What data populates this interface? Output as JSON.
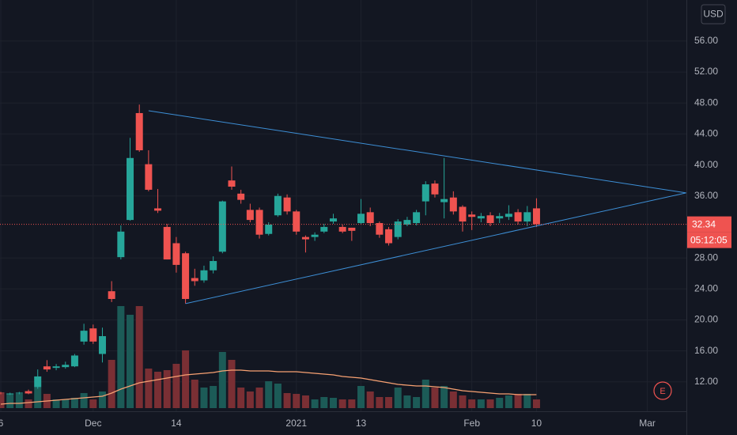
{
  "chart_data": {
    "type": "candlestick",
    "categories": [
      "6",
      null,
      null,
      null,
      null,
      null,
      null,
      null,
      null,
      null,
      "Dec",
      null,
      null,
      null,
      null,
      null,
      null,
      null,
      null,
      "14",
      null,
      null,
      null,
      null,
      null,
      null,
      null,
      null,
      null,
      null,
      null,
      null,
      "2021",
      null,
      null,
      null,
      null,
      null,
      null,
      "13",
      null,
      null,
      null,
      null,
      null,
      null,
      null,
      null,
      null,
      null,
      null,
      "Feb",
      null,
      null,
      null,
      null,
      null,
      null,
      "10",
      null,
      null,
      null,
      null,
      null,
      null,
      null,
      null,
      null,
      null,
      null,
      "Mar",
      null,
      null,
      null,
      null
    ],
    "open": [
      10.6,
      10.5,
      10.5,
      10.8,
      11.3,
      14.0,
      13.8,
      13.9,
      14.0,
      17.2,
      18.9,
      15.6,
      23.7,
      28.1,
      32.9,
      46.7,
      40.1,
      34.4,
      32.0,
      29.9,
      28.6,
      25.4,
      25.1,
      26.4,
      28.8,
      38.0,
      36.3,
      34.2,
      34.2,
      31.1,
      33.5,
      35.8,
      34.0,
      30.7,
      30.7,
      31.4,
      32.7,
      32.0,
      31.9,
      32.5,
      33.9,
      32.5,
      31.7,
      30.7,
      32.3,
      32.5,
      35.3,
      37.6,
      35.2,
      35.8,
      34.6,
      33.6,
      33.1,
      33.5,
      33.1,
      33.3,
      33.9,
      32.7,
      34.4,
      null,
      null,
      null,
      null,
      null,
      null,
      null,
      null,
      null,
      null,
      null,
      null,
      null,
      null,
      null,
      null
    ],
    "high": [
      10.7,
      10.6,
      10.7,
      11.0,
      13.6,
      14.8,
      14.3,
      14.6,
      15.6,
      19.5,
      19.4,
      19.0,
      25.0,
      32.2,
      43.5,
      47.8,
      41.9,
      36.9,
      32.4,
      30.7,
      28.8,
      26.6,
      27.0,
      28.2,
      35.4,
      39.8,
      36.8,
      35.0,
      34.5,
      32.6,
      36.3,
      36.2,
      34.2,
      30.9,
      31.3,
      32.4,
      33.7,
      32.3,
      31.9,
      35.6,
      34.5,
      32.7,
      32.0,
      33.0,
      33.3,
      34.2,
      37.9,
      38.0,
      40.9,
      36.6,
      34.8,
      34.0,
      33.8,
      33.9,
      33.8,
      34.8,
      34.3,
      34.7,
      35.7,
      null,
      null,
      null,
      null,
      null,
      null,
      null,
      null,
      null,
      null,
      null,
      null,
      null,
      null,
      null,
      null
    ],
    "low": [
      10.4,
      10.3,
      10.4,
      10.4,
      11.1,
      13.3,
      13.5,
      13.7,
      13.9,
      16.8,
      16.9,
      14.5,
      22.3,
      27.8,
      32.8,
      41.7,
      36.6,
      33.8,
      27.8,
      26.1,
      22.1,
      24.4,
      24.8,
      26.0,
      28.6,
      36.8,
      35.0,
      32.6,
      30.5,
      30.9,
      33.3,
      33.6,
      31.0,
      28.7,
      30.2,
      31.2,
      32.4,
      31.2,
      30.2,
      32.3,
      32.1,
      30.6,
      29.6,
      30.4,
      32.1,
      32.2,
      33.5,
      35.8,
      33.1,
      33.6,
      31.4,
      31.6,
      32.6,
      32.1,
      32.5,
      32.9,
      32.3,
      32.1,
      32.0,
      null,
      null,
      null,
      null,
      null,
      null,
      null,
      null,
      null,
      null,
      null,
      null,
      null,
      null,
      null,
      null
    ],
    "close": [
      10.5,
      10.5,
      10.6,
      10.5,
      12.7,
      13.6,
      14.0,
      14.2,
      15.4,
      18.6,
      17.2,
      17.9,
      22.7,
      31.4,
      40.9,
      41.9,
      36.8,
      34.1,
      27.8,
      27.1,
      22.7,
      25.0,
      26.4,
      27.6,
      35.3,
      37.2,
      35.5,
      32.9,
      31.0,
      32.3,
      36.0,
      34.0,
      31.4,
      30.4,
      31.0,
      32.0,
      33.1,
      31.4,
      31.5,
      33.7,
      32.5,
      31.0,
      29.9,
      32.7,
      32.9,
      33.9,
      37.5,
      36.2,
      35.6,
      34.0,
      32.7,
      33.3,
      33.4,
      32.5,
      33.4,
      33.7,
      32.7,
      33.9,
      32.34,
      null,
      null,
      null,
      null,
      null,
      null,
      null,
      null,
      null,
      null,
      null,
      null,
      null,
      null,
      null,
      null
    ],
    "colors": {
      "up": "#26a69a",
      "down": "#ef5350"
    },
    "volume": {
      "values": [
        1.8,
        1.8,
        1.8,
        1.1,
        2.6,
        1.8,
        1.1,
        1.1,
        1.3,
        1.9,
        1.1,
        2.1,
        6.1,
        12.9,
        11.8,
        12.9,
        5.0,
        4.6,
        4.8,
        5.6,
        7.3,
        3.6,
        2.6,
        2.8,
        7.1,
        6.1,
        2.6,
        2.1,
        2.6,
        3.4,
        3.1,
        1.9,
        1.8,
        1.6,
        1.1,
        1.4,
        1.3,
        1.1,
        1.1,
        2.8,
        2.1,
        1.4,
        1.4,
        2.6,
        1.6,
        1.4,
        3.6,
        2.6,
        2.8,
        2.1,
        1.6,
        1.1,
        1.1,
        1.1,
        1.3,
        1.6,
        1.8,
        1.8,
        1.1,
        null,
        null,
        null,
        null,
        null,
        null,
        null,
        null,
        null,
        null,
        null,
        null,
        null,
        null,
        null,
        null
      ],
      "ma": [
        0.5,
        0.6,
        0.6,
        0.7,
        0.8,
        0.9,
        1.0,
        1.1,
        1.2,
        1.3,
        1.4,
        1.5,
        1.9,
        2.4,
        2.8,
        3.2,
        3.4,
        3.6,
        3.8,
        4.0,
        4.2,
        4.3,
        4.4,
        4.5,
        4.7,
        4.8,
        4.8,
        4.7,
        4.7,
        4.7,
        4.6,
        4.6,
        4.6,
        4.5,
        4.4,
        4.3,
        4.2,
        4.0,
        3.9,
        3.8,
        3.6,
        3.4,
        3.2,
        3.0,
        2.9,
        2.8,
        2.8,
        2.7,
        2.6,
        2.4,
        2.2,
        2.1,
        2.0,
        1.9,
        1.8,
        1.8,
        1.7,
        1.7,
        1.7,
        null,
        null,
        null,
        null,
        null,
        null,
        null,
        null,
        null,
        null,
        null,
        null,
        null,
        null,
        null,
        null
      ],
      "up_color": "#1c5b57",
      "down_color": "#7a2f34",
      "ma_color": "#f7a172"
    },
    "ylim": [
      8.2,
      61.3
    ],
    "yticks": [
      {
        "value": 12,
        "label": "12.00"
      },
      {
        "value": 16,
        "label": "16.00"
      },
      {
        "value": 20,
        "label": "20.00"
      },
      {
        "value": 24,
        "label": "24.00"
      },
      {
        "value": 28,
        "label": "28.00"
      },
      {
        "value": 36,
        "label": "36.00"
      },
      {
        "value": 40,
        "label": "40.00"
      },
      {
        "value": 44,
        "label": "44.00"
      },
      {
        "value": 48,
        "label": "48.00"
      },
      {
        "value": 52,
        "label": "52.00"
      },
      {
        "value": 56,
        "label": "56.00"
      }
    ],
    "grid": true,
    "currency": "USD",
    "trendlines": [
      {
        "x": [
          16.0,
          74.2
        ],
        "y": [
          47.0,
          36.4
        ],
        "color": "#3d8fd6"
      },
      {
        "x": [
          20.0,
          74.2
        ],
        "y": [
          22.1,
          36.4
        ],
        "color": "#3d8fd6"
      }
    ],
    "last_price": 32.34,
    "countdown": "05:12:05",
    "event_marker": "E"
  }
}
